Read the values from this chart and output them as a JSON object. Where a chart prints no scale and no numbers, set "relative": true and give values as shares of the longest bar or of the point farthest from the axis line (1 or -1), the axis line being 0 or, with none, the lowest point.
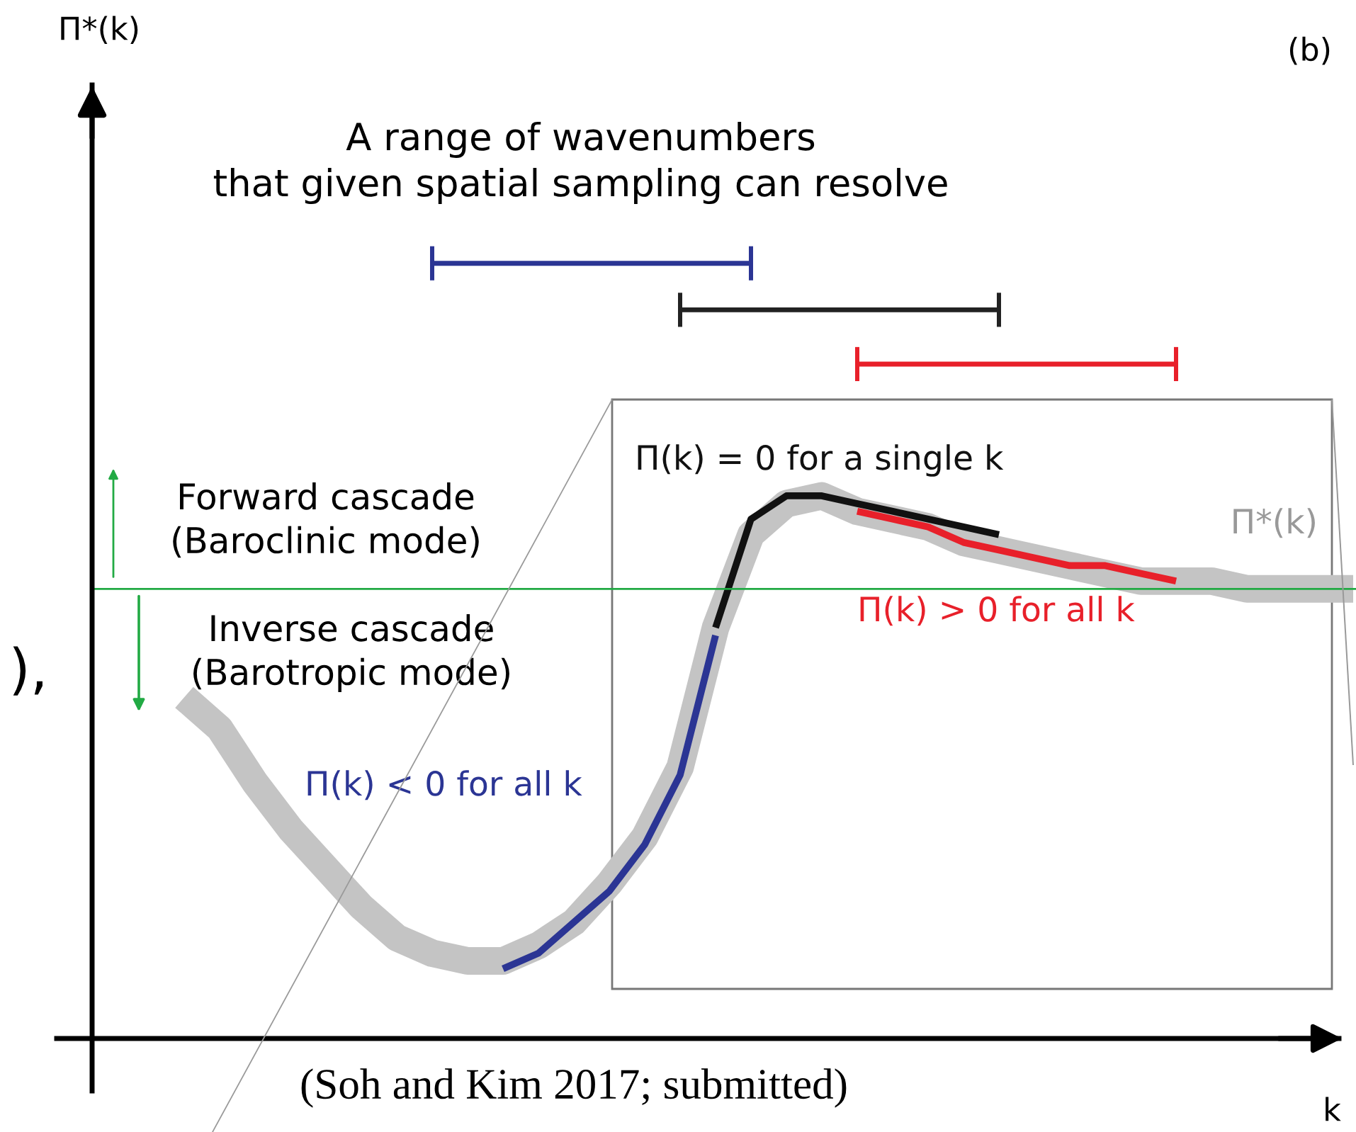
{
  "chart_data": {
    "type": "line",
    "relative": true,
    "title": "(b)",
    "xlabel": "k",
    "categories": [
      null,
      null,
      null,
      null,
      null,
      null,
      null,
      null,
      null,
      null,
      null,
      null,
      null,
      null,
      null,
      null,
      null,
      null,
      null,
      null,
      null,
      null,
      null,
      null,
      null,
      null,
      null,
      null,
      null,
      null,
      null,
      null,
      null,
      null
    ],
    "series": [
      {
        "name": "Π*(k)",
        "color": "#c4c4c4",
        "values": [
          0.44,
          0.4,
          0.33,
          0.27,
          0.22,
          0.17,
          0.13,
          0.11,
          0.1,
          0.1,
          0.12,
          0.15,
          0.2,
          0.26,
          0.35,
          0.53,
          0.65,
          0.69,
          0.7,
          0.68,
          0.67,
          0.66,
          0.64,
          0.63,
          0.62,
          0.61,
          0.6,
          0.59,
          0.59,
          0.59,
          0.58,
          0.58,
          0.58,
          0.58
        ]
      },
      {
        "name": "Π(k) < 0 for all k",
        "color": "#2b3594",
        "values": [
          null,
          null,
          null,
          null,
          null,
          null,
          null,
          null,
          null,
          0.09,
          0.11,
          0.15,
          0.19,
          0.25,
          0.34,
          0.52,
          null,
          null,
          null,
          null,
          null,
          null,
          null,
          null,
          null,
          null,
          null,
          null,
          null,
          null,
          null,
          null,
          null,
          null
        ]
      },
      {
        "name": "Π(k) = 0 for a single k",
        "color": "#111111",
        "values": [
          null,
          null,
          null,
          null,
          null,
          null,
          null,
          null,
          null,
          null,
          null,
          null,
          null,
          null,
          null,
          0.53,
          0.67,
          0.7,
          0.7,
          0.69,
          0.68,
          0.67,
          0.66,
          0.65,
          null,
          null,
          null,
          null,
          null,
          null,
          null,
          null,
          null,
          null
        ]
      },
      {
        "name": "Π(k) > 0 for all k",
        "color": "#e8202a",
        "values": [
          null,
          null,
          null,
          null,
          null,
          null,
          null,
          null,
          null,
          null,
          null,
          null,
          null,
          null,
          null,
          null,
          null,
          null,
          null,
          0.68,
          0.67,
          0.66,
          0.64,
          0.63,
          0.62,
          0.61,
          0.61,
          0.6,
          0.59,
          null,
          null,
          null,
          null,
          null
        ]
      },
      {
        "color": "#2b3594",
        "values": [
          null,
          null,
          null,
          null,
          null,
          null,
          null,
          1.0,
          1.0,
          1.0,
          1.0,
          1.0,
          1.0,
          1.0,
          1.0,
          1.0,
          1.0,
          null,
          null,
          null,
          null,
          null,
          null,
          null,
          null,
          null,
          null,
          null,
          null,
          null,
          null,
          null,
          null,
          null
        ]
      },
      {
        "color": "#222222",
        "values": [
          null,
          null,
          null,
          null,
          null,
          null,
          null,
          null,
          null,
          null,
          null,
          null,
          null,
          null,
          0.94,
          0.94,
          0.94,
          0.94,
          0.94,
          0.94,
          0.94,
          0.94,
          0.94,
          0.94,
          null,
          null,
          null,
          null,
          null,
          null,
          null,
          null,
          null,
          null
        ]
      },
      {
        "color": "#e8202a",
        "values": [
          null,
          null,
          null,
          null,
          null,
          null,
          null,
          null,
          null,
          null,
          null,
          null,
          null,
          null,
          null,
          null,
          null,
          null,
          null,
          0.87,
          0.87,
          0.87,
          0.87,
          0.87,
          0.87,
          0.87,
          0.87,
          0.87,
          0.87,
          null,
          null,
          null,
          null,
          null
        ]
      }
    ],
    "ref_lines": [
      {
        "axis": "y",
        "value": 0.58,
        "color": "#22aa44"
      }
    ],
    "annotations": [
      "Π*(k)",
      "A range of wavenumbers\nthat given spatial sampling can resolve",
      "Forward cascade\n(Baroclinic mode)",
      "Inverse cascade\n(Barotropic mode)",
      "(Soh and Kim 2017; submitted)",
      "),"
    ],
    "legend": false
  }
}
